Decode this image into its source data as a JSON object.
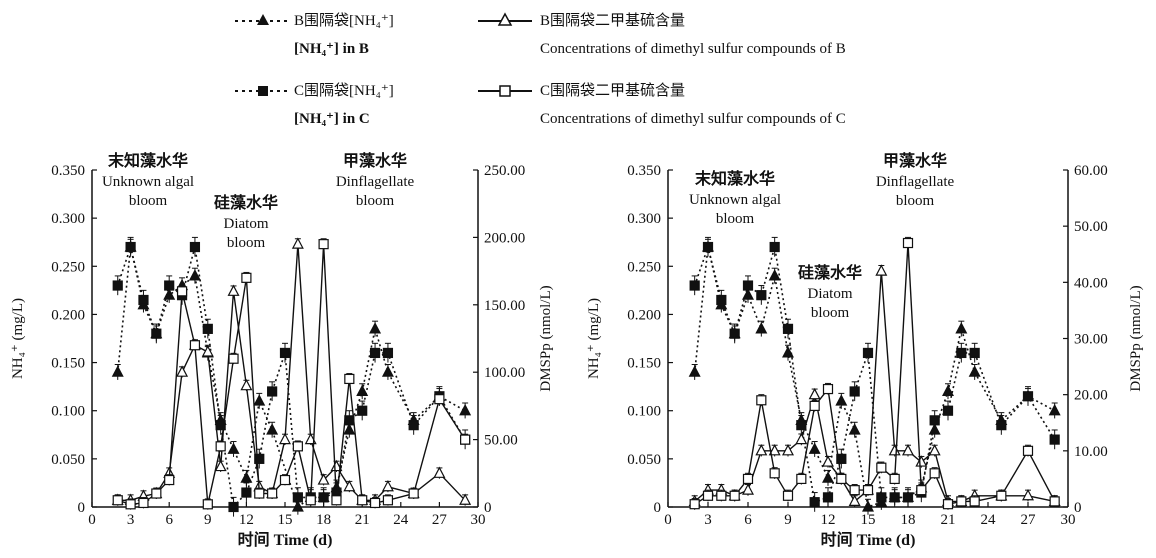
{
  "legend": {
    "b_nh4_cn": "B围隔袋[NH₄⁺]",
    "b_nh4_en": "[NH₄⁺] in B",
    "b_dms_cn": "B围隔袋二甲基硫含量",
    "b_dms_en": "Concentrations of dimethyl sulfur compounds of B",
    "c_nh4_cn": "C围隔袋[NH₄⁺]",
    "c_nh4_en": "[NH₄⁺] in C",
    "c_dms_cn": "C围隔袋二甲基硫含量",
    "c_dms_en": "Concentrations of dimethyl sulfur compounds of C"
  },
  "colors": {
    "ink": "#111111",
    "background": "#ffffff"
  },
  "chart_data": [
    {
      "type": "line",
      "panel": "B",
      "xlabel": "时间 Time (d)",
      "ylabel": "NH₄⁺ (mg/L)",
      "y2label": "DMSPp (nmol/L)",
      "xlim": [
        0,
        30
      ],
      "ylim": [
        0,
        0.35
      ],
      "y2lim": [
        0,
        250
      ],
      "xticks": [
        "0",
        "3",
        "6",
        "9",
        "12",
        "15",
        "18",
        "21",
        "24",
        "27",
        "30"
      ],
      "yticks": [
        "0",
        "0.050",
        "0.100",
        "0.150",
        "0.200",
        "0.250",
        "0.300",
        "0.350"
      ],
      "y2ticks": [
        "0",
        "50.00",
        "100.00",
        "150.00",
        "200.00",
        "250.00"
      ],
      "annotations": [
        {
          "cn": "末知藻水华",
          "en": [
            "Unknown algal",
            "bloom"
          ]
        },
        {
          "cn": "硅藻水华",
          "en": [
            "Diatom",
            "bloom"
          ]
        },
        {
          "cn": "甲藻水华",
          "en": [
            "Dinflagellate",
            "bloom"
          ]
        }
      ],
      "series": [
        {
          "name": "B围隔袋[NH₄⁺]",
          "axis": "left",
          "style": "dotted",
          "marker": "filled-triangle",
          "x": [
            2,
            3,
            4,
            5,
            6,
            7,
            8,
            9,
            10,
            11,
            12,
            13,
            14,
            16,
            17,
            18,
            19,
            20,
            21,
            22,
            23,
            25,
            27,
            29
          ],
          "y": [
            0.14,
            0.27,
            0.21,
            0.18,
            0.22,
            0.23,
            0.24,
            0.16,
            0.09,
            0.06,
            0.03,
            0.11,
            0.08,
            0.0,
            0.01,
            0.01,
            0.02,
            0.08,
            0.12,
            0.185,
            0.14,
            0.09,
            0.115,
            0.1
          ],
          "error": 0.008
        },
        {
          "name": "C围隔袋[NH₄⁺]",
          "axis": "left",
          "style": "dotted",
          "marker": "filled-square",
          "x": [
            2,
            3,
            4,
            5,
            6,
            7,
            8,
            9,
            10,
            11,
            12,
            13,
            14,
            15,
            16,
            17,
            18,
            19,
            20,
            21,
            22,
            23,
            25,
            27,
            29
          ],
          "y": [
            0.23,
            0.27,
            0.215,
            0.18,
            0.23,
            0.22,
            0.27,
            0.185,
            0.085,
            0.0,
            0.015,
            0.05,
            0.12,
            0.16,
            0.01,
            0.01,
            0.01,
            0.015,
            0.09,
            0.1,
            0.16,
            0.16,
            0.085,
            0.115,
            0.07
          ],
          "error": 0.01
        },
        {
          "name": "B围隔袋二甲基硫含量",
          "axis": "right",
          "style": "solid",
          "marker": "open-triangle",
          "x": [
            2,
            3,
            4,
            5,
            6,
            7,
            8,
            9,
            10,
            11,
            12,
            13,
            14,
            15,
            16,
            17,
            18,
            19,
            20,
            21,
            22,
            23,
            25,
            27,
            29
          ],
          "y": [
            5,
            5,
            8,
            10,
            25,
            100,
            120,
            115,
            30,
            160,
            90,
            15,
            10,
            50,
            195,
            50,
            20,
            30,
            15,
            5,
            5,
            15,
            10,
            25,
            5
          ],
          "error": 4
        },
        {
          "name": "C围隔袋二甲基硫含量",
          "axis": "right",
          "style": "solid",
          "marker": "open-square",
          "x": [
            2,
            3,
            4,
            5,
            6,
            7,
            8,
            9,
            10,
            11,
            12,
            13,
            14,
            15,
            16,
            17,
            18,
            19,
            20,
            21,
            22,
            23,
            25,
            27,
            29
          ],
          "y": [
            5,
            2,
            3,
            10,
            20,
            160,
            120,
            2,
            45,
            110,
            170,
            10,
            10,
            20,
            45,
            5,
            195,
            5,
            95,
            5,
            3,
            5,
            10,
            80,
            50
          ],
          "error": 4
        }
      ]
    },
    {
      "type": "line",
      "panel": "C",
      "xlabel": "时间 Time (d)",
      "ylabel": "NH₄⁺ (mg/L)",
      "y2label": "DMSPp (nmol/L)",
      "xlim": [
        0,
        30
      ],
      "ylim": [
        0,
        0.35
      ],
      "y2lim": [
        0,
        60
      ],
      "xticks": [
        "0",
        "3",
        "6",
        "9",
        "12",
        "15",
        "18",
        "21",
        "24",
        "27",
        "30"
      ],
      "yticks": [
        "0",
        "0.050",
        "0.100",
        "0.150",
        "0.200",
        "0.250",
        "0.300",
        "0.350"
      ],
      "y2ticks": [
        "0",
        "10.00",
        "20.00",
        "30.00",
        "40.00",
        "50.00",
        "60.00"
      ],
      "annotations": [
        {
          "cn": "末知藻水华",
          "en": [
            "Unknown algal",
            "bloom"
          ]
        },
        {
          "cn": "甲藻水华",
          "en": [
            "Dinflagellate",
            "bloom"
          ]
        },
        {
          "cn": "硅藻水华",
          "en": [
            "Diatom",
            "bloom"
          ]
        }
      ],
      "series": [
        {
          "name": "B围隔袋[NH₄⁺]",
          "axis": "left",
          "style": "dotted",
          "marker": "filled-triangle",
          "x": [
            2,
            3,
            4,
            5,
            6,
            7,
            8,
            9,
            10,
            11,
            12,
            13,
            14,
            15,
            16,
            17,
            18,
            19,
            20,
            21,
            22,
            23,
            25,
            27,
            29
          ],
          "y": [
            0.14,
            0.27,
            0.21,
            0.18,
            0.22,
            0.185,
            0.24,
            0.16,
            0.09,
            0.06,
            0.03,
            0.11,
            0.08,
            0.0,
            0.005,
            0.01,
            0.01,
            0.02,
            0.08,
            0.12,
            0.185,
            0.14,
            0.09,
            0.115,
            0.1
          ],
          "error": 0.008
        },
        {
          "name": "C围隔袋[NH₄⁺]",
          "axis": "left",
          "style": "dotted",
          "marker": "filled-square",
          "x": [
            2,
            3,
            4,
            5,
            6,
            7,
            8,
            9,
            10,
            11,
            12,
            13,
            14,
            15,
            16,
            17,
            18,
            19,
            20,
            21,
            22,
            23,
            25,
            27,
            29
          ],
          "y": [
            0.23,
            0.27,
            0.215,
            0.18,
            0.23,
            0.22,
            0.27,
            0.185,
            0.085,
            0.005,
            0.01,
            0.05,
            0.12,
            0.16,
            0.01,
            0.01,
            0.01,
            0.015,
            0.09,
            0.1,
            0.16,
            0.16,
            0.085,
            0.115,
            0.07
          ],
          "error": 0.01
        },
        {
          "name": "B围隔袋二甲基硫含量",
          "axis": "right",
          "style": "solid",
          "marker": "open-triangle",
          "x": [
            2,
            3,
            4,
            5,
            6,
            7,
            8,
            9,
            10,
            11,
            12,
            13,
            14,
            15,
            16,
            17,
            18,
            19,
            20,
            21,
            22,
            23,
            25,
            27,
            29
          ],
          "y": [
            1,
            3,
            3,
            2,
            3,
            10,
            10,
            10,
            12,
            20,
            8,
            5,
            1,
            3,
            42,
            10,
            10,
            8,
            10,
            1,
            1,
            2,
            2,
            2,
            1
          ],
          "error": 1
        },
        {
          "name": "C围隔袋二甲基硫含量",
          "axis": "right",
          "style": "solid",
          "marker": "open-square",
          "x": [
            2,
            3,
            4,
            5,
            6,
            7,
            8,
            9,
            10,
            11,
            12,
            13,
            14,
            15,
            16,
            17,
            18,
            19,
            20,
            21,
            22,
            23,
            25,
            27,
            29
          ],
          "y": [
            0.5,
            2,
            2,
            2,
            5,
            19,
            6,
            2,
            5,
            18,
            21,
            5,
            3,
            3,
            7,
            5,
            47,
            3,
            6,
            0.5,
            1,
            1,
            2,
            10,
            1
          ],
          "error": 1
        }
      ]
    }
  ]
}
